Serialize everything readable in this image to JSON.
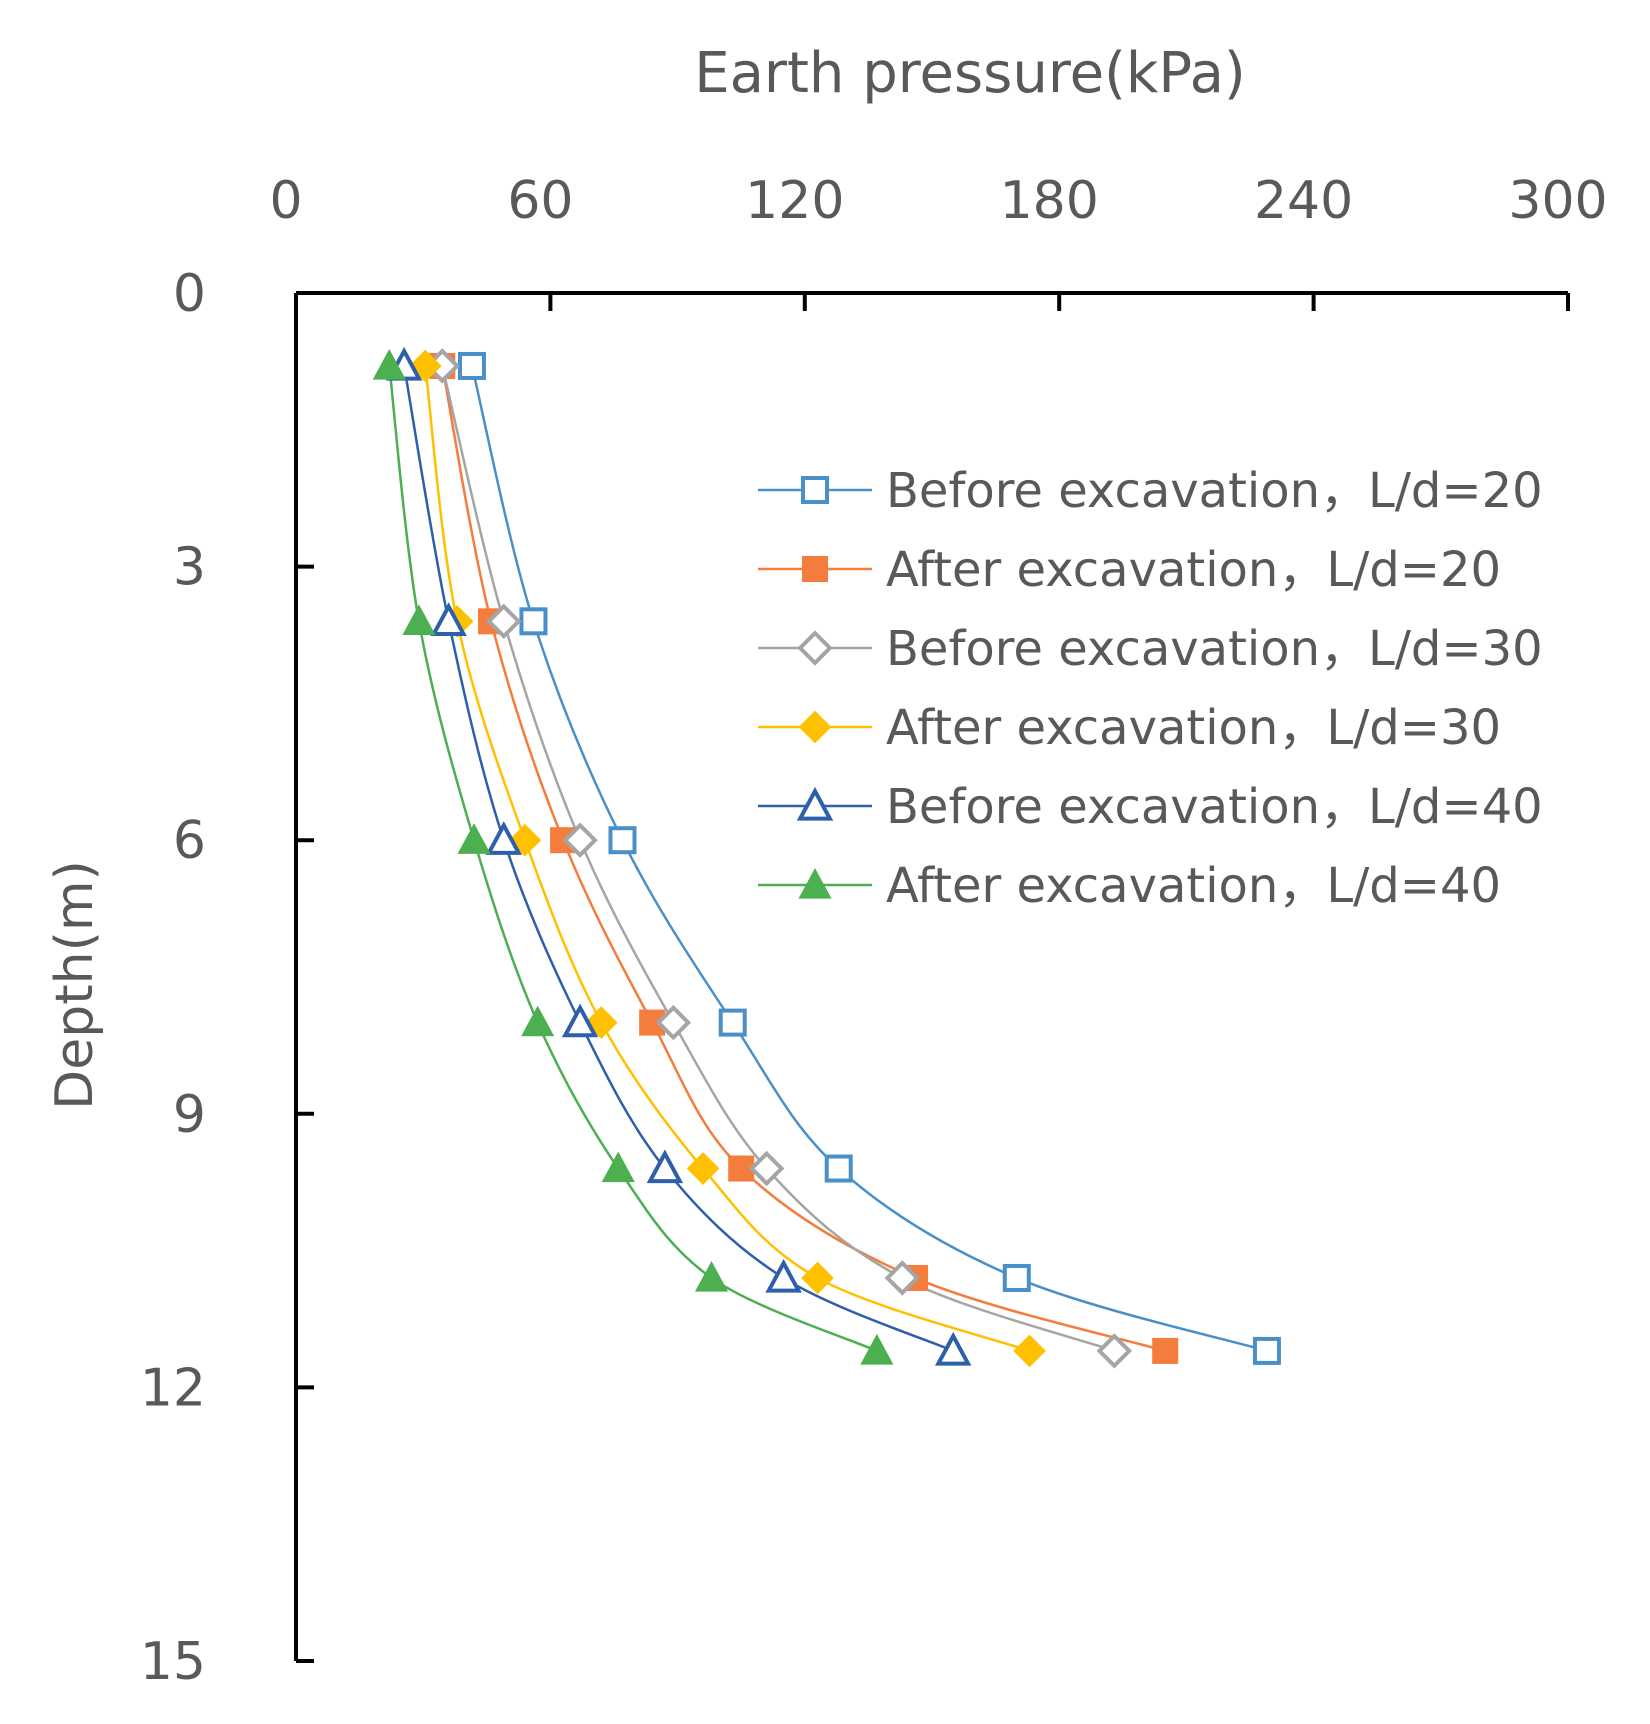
{
  "chart_data": {
    "type": "scatter",
    "title": "Earth pressure(kPa)",
    "xlabel": "Earth pressure(kPa)",
    "ylabel": "Depth(m)",
    "x_axis_position": "top",
    "y_axis_inverted": true,
    "xlim": [
      0,
      300
    ],
    "ylim": [
      0,
      15
    ],
    "xticks": [
      "0",
      "60",
      "120",
      "180",
      "240",
      "300"
    ],
    "xtick_values": [
      0,
      60,
      120,
      180,
      240,
      300
    ],
    "yticks": [
      "0",
      "3",
      "6",
      "9",
      "12",
      "15"
    ],
    "ytick_values": [
      0,
      3,
      6,
      9,
      12,
      15
    ],
    "grid": false,
    "legend_placement": "upper-right",
    "smooth_lines": true,
    "series": [
      {
        "name": "Before excavation，L/d=20",
        "color": "#4A90C8",
        "marker": "square",
        "filled": false,
        "points": [
          [
            41.5,
            0.8
          ],
          [
            56,
            3.6
          ],
          [
            77,
            6.0
          ],
          [
            103,
            8.0
          ],
          [
            128,
            9.6
          ],
          [
            170,
            10.8
          ],
          [
            229,
            11.6
          ]
        ]
      },
      {
        "name": "After excavation，L/d=20",
        "color": "#F47C3C",
        "marker": "square",
        "filled": true,
        "points": [
          [
            34.5,
            0.8
          ],
          [
            46,
            3.6
          ],
          [
            63,
            6.0
          ],
          [
            84,
            8.0
          ],
          [
            105,
            9.6
          ],
          [
            146,
            10.8
          ],
          [
            205,
            11.6
          ]
        ]
      },
      {
        "name": "Before excavation，L/d=30",
        "color": "#A5A5A5",
        "marker": "diamond",
        "filled": false,
        "points": [
          [
            34.5,
            0.8
          ],
          [
            49,
            3.6
          ],
          [
            67,
            6.0
          ],
          [
            89,
            8.0
          ],
          [
            111,
            9.6
          ],
          [
            143,
            10.8
          ],
          [
            193,
            11.6
          ]
        ]
      },
      {
        "name": "After excavation，L/d=30",
        "color": "#FFC000",
        "marker": "diamond",
        "filled": true,
        "points": [
          [
            30.5,
            0.8
          ],
          [
            38,
            3.6
          ],
          [
            54,
            6.0
          ],
          [
            72,
            8.0
          ],
          [
            96,
            9.6
          ],
          [
            123,
            10.8
          ],
          [
            173,
            11.6
          ]
        ]
      },
      {
        "name": "Before excavation，L/d=40",
        "color": "#2E5FAA",
        "marker": "triangle",
        "filled": false,
        "points": [
          [
            25.5,
            0.8
          ],
          [
            36,
            3.6
          ],
          [
            49,
            6.0
          ],
          [
            67,
            8.0
          ],
          [
            87,
            9.6
          ],
          [
            115,
            10.8
          ],
          [
            155,
            11.6
          ]
        ]
      },
      {
        "name": "After excavation，L/d=40",
        "color": "#4CAF50",
        "marker": "triangle",
        "filled": true,
        "points": [
          [
            22,
            0.8
          ],
          [
            29,
            3.6
          ],
          [
            42,
            6.0
          ],
          [
            57,
            8.0
          ],
          [
            76,
            9.6
          ],
          [
            98,
            10.8
          ],
          [
            137,
            11.6
          ]
        ]
      }
    ]
  }
}
